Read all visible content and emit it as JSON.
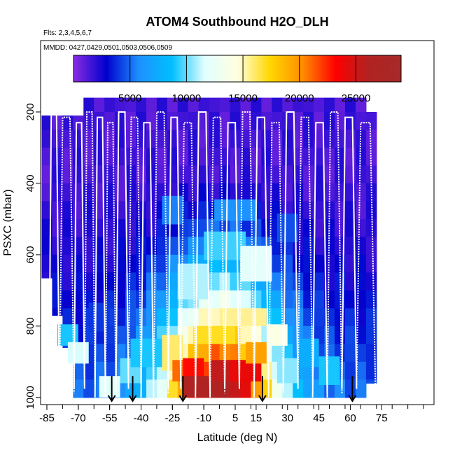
{
  "chart_data": {
    "type": "heatmap",
    "title": "ATOM4 Southbound H2O_DLH",
    "flights_label": "Flts: 2,3,4,5,6,7",
    "dates_label": "MMDD: 0427,0429,0501,0503,0506,0509",
    "xlabel": "Latitude (deg N)",
    "ylabel": "PSXC (mbar)",
    "xlim": [
      -88,
      100
    ],
    "ylim": [
      1020,
      0
    ],
    "x_ticks": [
      -85,
      -70,
      -55,
      -40,
      -25,
      -10,
      5,
      15,
      30,
      45,
      60,
      75
    ],
    "x_tick_labels": [
      "-85",
      "-70",
      "-55",
      "-40",
      "-25",
      "-10",
      "5",
      "15",
      "30",
      "45",
      "60",
      "75"
    ],
    "y_ticks": [
      200,
      400,
      600,
      800,
      1000
    ],
    "y_tick_labels": [
      "200",
      "400",
      "600",
      "800",
      "1000"
    ],
    "colorbar": {
      "min": 0,
      "max": 29000,
      "ticks": [
        5000,
        10000,
        15000,
        20000,
        25000
      ],
      "tick_labels": [
        "5000",
        "10000",
        "15000",
        "20000",
        "25000"
      ],
      "colors": [
        "#8a2be2",
        "#0000cd",
        "#1e90ff",
        "#00bfff",
        "#e0ffff",
        "#ffffe0",
        "#ffd700",
        "#ff8c00",
        "#ff0000",
        "#b22222",
        "#a52a2a"
      ]
    },
    "pressure_levels": [
      175,
      225,
      275,
      325,
      375,
      425,
      475,
      525,
      575,
      625,
      675,
      725,
      775,
      825,
      875,
      925,
      975
    ],
    "latitude_bins": [
      -85,
      -80,
      -75,
      -70,
      -65,
      -60,
      -55,
      -50,
      -45,
      -40,
      -35,
      -30,
      -25,
      -20,
      -15,
      -10,
      -5,
      0,
      5,
      10,
      15,
      20,
      25,
      30,
      35,
      40,
      45,
      50,
      55,
      60,
      65,
      70
    ],
    "bin_extents": [
      {
        "lat": -85,
        "pmin": 210,
        "pmax": 665
      },
      {
        "lat": -80,
        "pmin": 210,
        "pmax": 770
      },
      {
        "lat": -75,
        "pmin": 210,
        "pmax": 860
      },
      {
        "lat": -70,
        "pmin": 210,
        "pmax": 1000
      },
      {
        "lat": -65,
        "pmin": 160,
        "pmax": 1000
      },
      {
        "lat": -60,
        "pmin": 160,
        "pmax": 1000
      },
      {
        "lat": -55,
        "pmin": 160,
        "pmax": 1000
      },
      {
        "lat": -50,
        "pmin": 160,
        "pmax": 1000
      },
      {
        "lat": -45,
        "pmin": 160,
        "pmax": 1000
      },
      {
        "lat": -40,
        "pmin": 160,
        "pmax": 1000
      },
      {
        "lat": -35,
        "pmin": 160,
        "pmax": 1000
      },
      {
        "lat": -30,
        "pmin": 160,
        "pmax": 1000
      },
      {
        "lat": -25,
        "pmin": 160,
        "pmax": 1000
      },
      {
        "lat": -20,
        "pmin": 160,
        "pmax": 1000
      },
      {
        "lat": -15,
        "pmin": 160,
        "pmax": 1000
      },
      {
        "lat": -10,
        "pmin": 160,
        "pmax": 1000
      },
      {
        "lat": -5,
        "pmin": 160,
        "pmax": 1000
      },
      {
        "lat": 0,
        "pmin": 160,
        "pmax": 1000
      },
      {
        "lat": 5,
        "pmin": 160,
        "pmax": 1000
      },
      {
        "lat": 10,
        "pmin": 160,
        "pmax": 1000
      },
      {
        "lat": 15,
        "pmin": 160,
        "pmax": 1000
      },
      {
        "lat": 20,
        "pmin": 160,
        "pmax": 1000
      },
      {
        "lat": 25,
        "pmin": 160,
        "pmax": 1000
      },
      {
        "lat": 30,
        "pmin": 160,
        "pmax": 1000
      },
      {
        "lat": 35,
        "pmin": 160,
        "pmax": 1000
      },
      {
        "lat": 40,
        "pmin": 160,
        "pmax": 1000
      },
      {
        "lat": 45,
        "pmin": 160,
        "pmax": 1000
      },
      {
        "lat": 50,
        "pmin": 160,
        "pmax": 1000
      },
      {
        "lat": 55,
        "pmin": 160,
        "pmax": 1000
      },
      {
        "lat": 60,
        "pmin": 160,
        "pmax": 1000
      },
      {
        "lat": 65,
        "pmin": 160,
        "pmax": 1000
      },
      {
        "lat": 70,
        "pmin": 200,
        "pmax": 960
      }
    ],
    "features": [
      {
        "lat": -55,
        "p": 975,
        "w": 10,
        "h": 70,
        "value": 12000
      },
      {
        "lat": -45,
        "p": 925,
        "w": 10,
        "h": 70,
        "value": 10000
      },
      {
        "lat": -35,
        "p": 875,
        "w": 20,
        "h": 80,
        "value": 9000
      },
      {
        "lat": -25,
        "p": 875,
        "w": 10,
        "h": 100,
        "value": 16000
      },
      {
        "lat": -20,
        "p": 925,
        "w": 10,
        "h": 60,
        "value": 21000
      },
      {
        "lat": -15,
        "p": 925,
        "w": 10,
        "h": 70,
        "value": 23000
      },
      {
        "lat": -10,
        "p": 975,
        "w": 20,
        "h": 70,
        "value": 26500
      },
      {
        "lat": 0,
        "p": 925,
        "w": 15,
        "h": 60,
        "value": 25500
      },
      {
        "lat": 10,
        "p": 925,
        "w": 15,
        "h": 60,
        "value": 24000
      },
      {
        "lat": 15,
        "p": 875,
        "w": 10,
        "h": 60,
        "value": 19500
      },
      {
        "lat": -5,
        "p": 825,
        "w": 20,
        "h": 50,
        "value": 17000
      },
      {
        "lat": 10,
        "p": 775,
        "w": 20,
        "h": 50,
        "value": 15500
      },
      {
        "lat": 25,
        "p": 825,
        "w": 10,
        "h": 60,
        "value": 14000
      },
      {
        "lat": 30,
        "p": 925,
        "w": 10,
        "h": 70,
        "value": 10500
      },
      {
        "lat": 40,
        "p": 875,
        "w": 10,
        "h": 80,
        "value": 7500
      },
      {
        "lat": 50,
        "p": 925,
        "w": 10,
        "h": 80,
        "value": 9000
      },
      {
        "lat": -15,
        "p": 675,
        "w": 15,
        "h": 100,
        "value": 11000
      },
      {
        "lat": 0,
        "p": 575,
        "w": 20,
        "h": 80,
        "value": 9500
      },
      {
        "lat": 15,
        "p": 625,
        "w": 15,
        "h": 100,
        "value": 12000
      },
      {
        "lat": 5,
        "p": 475,
        "w": 20,
        "h": 60,
        "value": 6000
      },
      {
        "lat": -25,
        "p": 475,
        "w": 10,
        "h": 80,
        "value": 5500
      },
      {
        "lat": 30,
        "p": 525,
        "w": 10,
        "h": 80,
        "value": 4500
      },
      {
        "lat": -60,
        "p": 775,
        "w": 10,
        "h": 80,
        "value": 4000
      },
      {
        "lat": -75,
        "p": 825,
        "w": 10,
        "h": 60,
        "value": 9000
      },
      {
        "lat": -70,
        "p": 875,
        "w": 10,
        "h": 60,
        "value": 11500
      }
    ],
    "profiles": [
      {
        "lat_start": -84,
        "lat_end": -79
      },
      {
        "lat_start": -79,
        "lat_end": -72
      },
      {
        "lat_start": -72,
        "lat_end": -67
      },
      {
        "lat_start": -67,
        "lat_end": -62
      },
      {
        "lat_start": -62,
        "lat_end": -57
      },
      {
        "lat_start": -57,
        "lat_end": -52
      },
      {
        "lat_start": -52,
        "lat_end": -46
      },
      {
        "lat_start": -46,
        "lat_end": -40
      },
      {
        "lat_start": -40,
        "lat_end": -34
      },
      {
        "lat_start": -34,
        "lat_end": -27
      },
      {
        "lat_start": -27,
        "lat_end": -21
      },
      {
        "lat_start": -21,
        "lat_end": -14
      },
      {
        "lat_start": -14,
        "lat_end": -7
      },
      {
        "lat_start": -7,
        "lat_end": 0
      },
      {
        "lat_start": 0,
        "lat_end": 7
      },
      {
        "lat_start": 7,
        "lat_end": 14
      },
      {
        "lat_start": 14,
        "lat_end": 21
      },
      {
        "lat_start": 21,
        "lat_end": 28
      },
      {
        "lat_start": 28,
        "lat_end": 35
      },
      {
        "lat_start": 35,
        "lat_end": 42
      },
      {
        "lat_start": 42,
        "lat_end": 49
      },
      {
        "lat_start": 49,
        "lat_end": 56
      },
      {
        "lat_start": 56,
        "lat_end": 63
      },
      {
        "lat_start": 63,
        "lat_end": 72
      }
    ],
    "profile_top_pressure": 200,
    "profile_bottom_pressure": 1000,
    "arrows_lat": [
      -54,
      -44,
      -20,
      18,
      61
    ]
  }
}
